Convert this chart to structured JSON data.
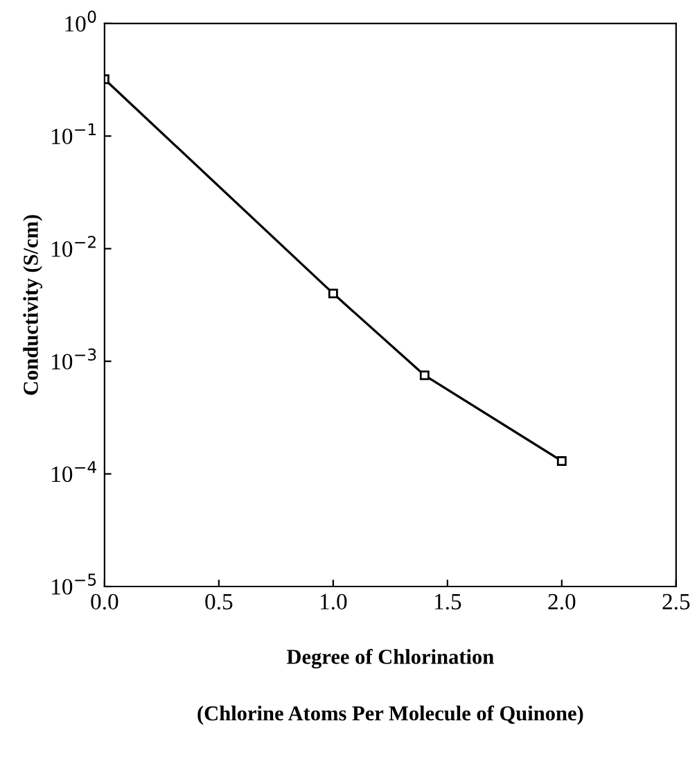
{
  "chart_data": {
    "type": "line",
    "xlabel": "Degree of Chlorination\n\n(Chlorine Atoms Per Molecule of Quinone)",
    "ylabel": "Conductivity (S/cm)",
    "x": [
      0.0,
      1.0,
      1.4,
      2.0
    ],
    "series": [
      {
        "color": "#000000",
        "values": [
          0.32,
          0.004,
          0.00075,
          0.00013
        ]
      }
    ],
    "log": "y",
    "xlim": [
      0.0,
      2.5
    ],
    "xticks": [
      {
        "value": 0.0,
        "label": "0.0"
      },
      {
        "value": 0.5,
        "label": "0.5"
      },
      {
        "value": 1.0,
        "label": "1.0"
      },
      {
        "value": 1.5,
        "label": "1.5"
      },
      {
        "value": 2.0,
        "label": "2.0"
      },
      {
        "value": 2.5,
        "label": "2.5"
      }
    ],
    "ylim": [
      1e-05,
      1
    ],
    "yticks": [
      {
        "value": 1e-05,
        "label": "10$^{−5}$"
      },
      {
        "value": 0.0001,
        "label": "10$^{−4}$"
      },
      {
        "value": 0.001,
        "label": "10$^{−3}$"
      },
      {
        "value": 0.01,
        "label": "10$^{−2}$"
      },
      {
        "value": 0.1,
        "label": "10$^{−1}$"
      },
      {
        "value": 1,
        "label": "10$^{0}$"
      }
    ],
    "marker": "square",
    "line_style": "solid",
    "grid": false,
    "legend": false
  }
}
